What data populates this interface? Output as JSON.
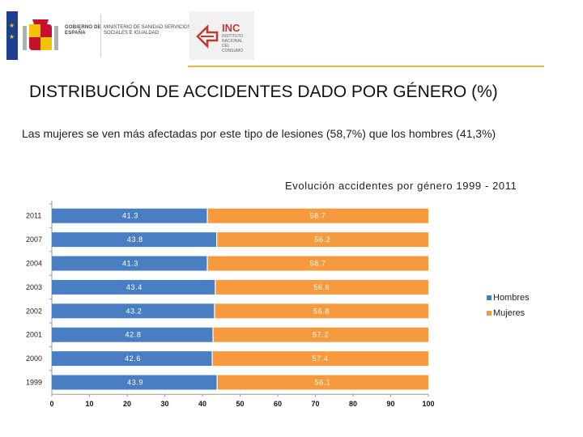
{
  "header": {
    "gov_logo_text": "GOBIERNO DE ESPAÑA",
    "ministry_text": "MINISTERIO DE SANIDAD SERVICIOS SOCIALES E IGUALDAD",
    "inc_title": "INC",
    "inc_subtitle": "INSTITUTO NACIONAL DEL CONSUMO"
  },
  "title": "DISTRIBUCIÓN DE ACCIDENTES DADO POR GÉNERO (%)",
  "intro_text": "Las mujeres se ven más afectadas por este tipo de lesiones (58,7%) que los hombres (41,3%)",
  "colors": {
    "hombres": "#4a7ec2",
    "mujeres": "#f79a3e",
    "accent_rule": "#e8b93a",
    "inc_red": "#c23a2f"
  },
  "chart_data": {
    "type": "bar",
    "orientation": "horizontal",
    "stacked": true,
    "title": "Evolución accidentes por género 1999 - 2011",
    "categories": [
      "2011",
      "2007",
      "2004",
      "2003",
      "2002",
      "2001",
      "2000",
      "1999"
    ],
    "series": [
      {
        "name": "Hombres",
        "values": [
          41.3,
          43.8,
          41.3,
          43.4,
          43.2,
          42.8,
          42.6,
          43.9
        ]
      },
      {
        "name": "Mujeres",
        "values": [
          58.7,
          56.2,
          58.7,
          56.6,
          56.8,
          57.2,
          57.4,
          56.1
        ]
      }
    ],
    "xlim": [
      0,
      100
    ],
    "xticks": [
      "0",
      "10",
      "20",
      "30",
      "40",
      "50",
      "60",
      "70",
      "80",
      "90",
      "100"
    ],
    "legend_position": "right",
    "xlabel": "",
    "ylabel": ""
  }
}
